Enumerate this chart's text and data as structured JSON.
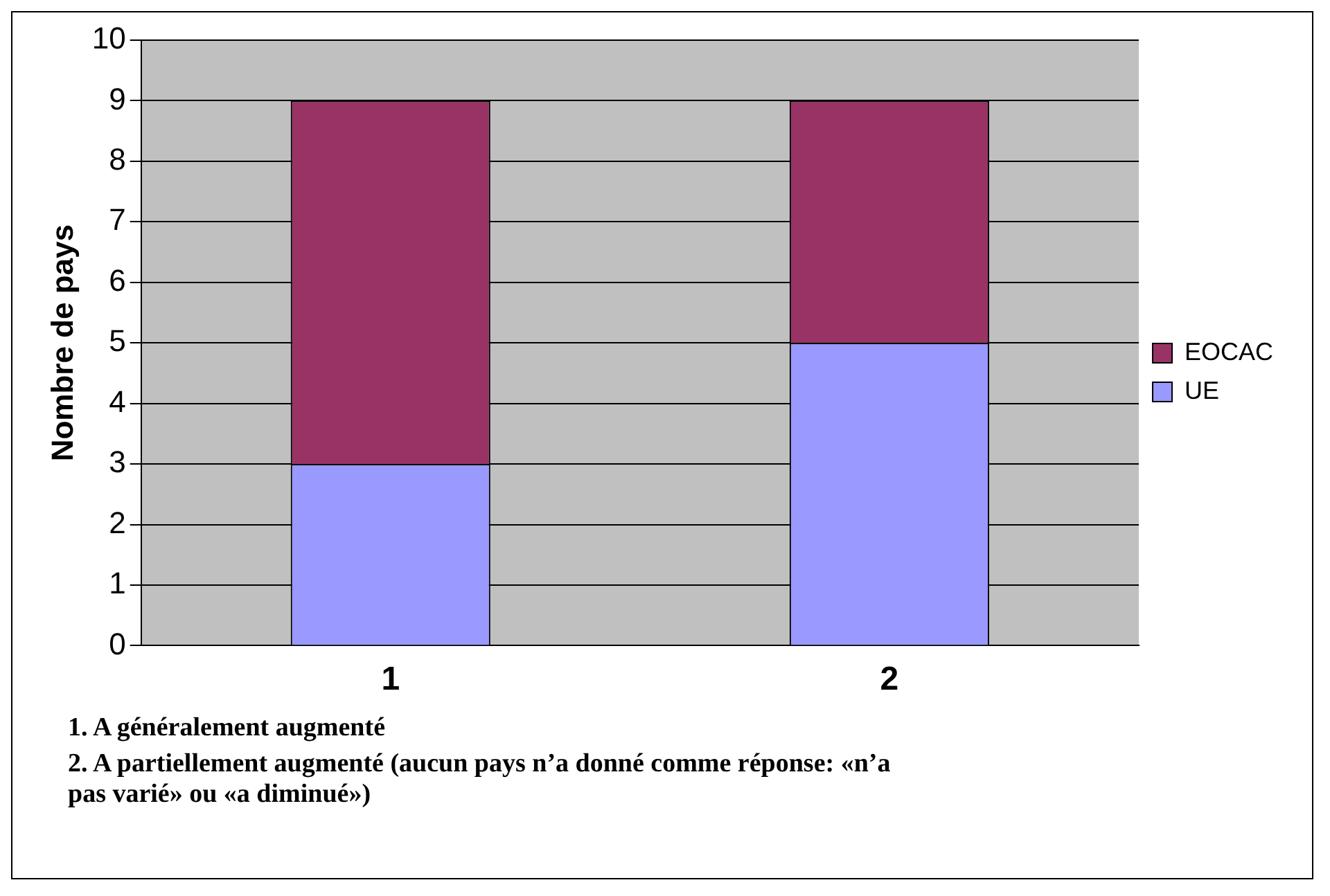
{
  "chart_data": {
    "type": "bar",
    "stacked": true,
    "ylabel": "Nombre de pays",
    "categories": [
      "1",
      "2"
    ],
    "series": [
      {
        "name": "UE",
        "color": "#9999ff",
        "values": [
          3,
          5
        ]
      },
      {
        "name": "EOCAC",
        "color": "#993366",
        "values": [
          6,
          4
        ]
      }
    ],
    "ylim": [
      0,
      10
    ],
    "yticks": [
      0,
      1,
      2,
      3,
      4,
      5,
      6,
      7,
      8,
      9,
      10
    ],
    "grid": "y",
    "legend": "right",
    "annotations": [
      "1. A généralement augmenté",
      "2. A partiellement augmenté (aucun pays n’a donné comme réponse: «n’a pas varié» ou «a diminué»)"
    ]
  }
}
